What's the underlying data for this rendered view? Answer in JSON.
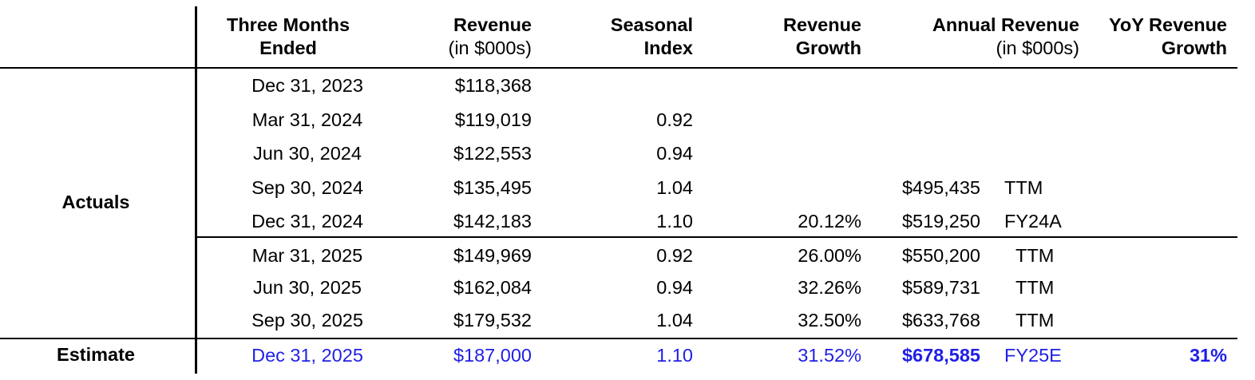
{
  "headers": {
    "col1": [
      "Three Months",
      "Ended"
    ],
    "col2": [
      "Revenue",
      "(in $000s)"
    ],
    "col3": [
      "Seasonal",
      "Index"
    ],
    "col4": [
      "Revenue",
      "Growth"
    ],
    "col5": [
      "Annual Revenue",
      "(in $000s)"
    ],
    "col6": [
      "YoY Revenue",
      "Growth"
    ]
  },
  "groups": {
    "actuals": "Actuals",
    "estimate": "Estimate"
  },
  "rows": [
    {
      "date": "Dec 31, 2023",
      "revenue": "$118,368",
      "index": "",
      "growth": "",
      "annual": "",
      "tag": "",
      "yoy": ""
    },
    {
      "date": "Mar 31, 2024",
      "revenue": "$119,019",
      "index": "0.92",
      "growth": "",
      "annual": "",
      "tag": "",
      "yoy": ""
    },
    {
      "date": "Jun 30, 2024",
      "revenue": "$122,553",
      "index": "0.94",
      "growth": "",
      "annual": "",
      "tag": "",
      "yoy": ""
    },
    {
      "date": "Sep 30, 2024",
      "revenue": "$135,495",
      "index": "1.04",
      "growth": "",
      "annual": "$495,435",
      "tag": "TTM",
      "yoy": ""
    },
    {
      "date": "Dec 31, 2024",
      "revenue": "$142,183",
      "index": "1.10",
      "growth": "20.12%",
      "annual": "$519,250",
      "tag": "FY24A",
      "yoy": ""
    },
    {
      "date": "Mar 31, 2025",
      "revenue": "$149,969",
      "index": "0.92",
      "growth": "26.00%",
      "annual": "$550,200",
      "tag": "TTM",
      "yoy": ""
    },
    {
      "date": "Jun 30, 2025",
      "revenue": "$162,084",
      "index": "0.94",
      "growth": "32.26%",
      "annual": "$589,731",
      "tag": "TTM",
      "yoy": ""
    },
    {
      "date": "Sep 30, 2025",
      "revenue": "$179,532",
      "index": "1.04",
      "growth": "32.50%",
      "annual": "$633,768",
      "tag": "TTM",
      "yoy": ""
    },
    {
      "date": "Dec 31, 2025",
      "revenue": "$187,000",
      "index": "1.10",
      "growth": "31.52%",
      "annual": "$678,585",
      "tag": "FY25E",
      "yoy": "31%"
    }
  ],
  "colors": {
    "estimate_text": "#1f1fe6"
  }
}
